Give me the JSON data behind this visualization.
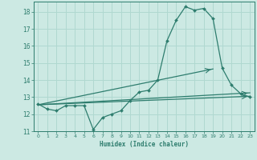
{
  "background_color": "#cce9e3",
  "grid_color": "#b0d8d0",
  "line_color": "#2e7d6e",
  "xlabel": "Humidex (Indice chaleur)",
  "xlim": [
    -0.5,
    23.5
  ],
  "ylim": [
    11,
    18.6
  ],
  "yticks": [
    11,
    12,
    13,
    14,
    15,
    16,
    17,
    18
  ],
  "xticks": [
    0,
    1,
    2,
    3,
    4,
    5,
    6,
    7,
    8,
    9,
    10,
    11,
    12,
    13,
    14,
    15,
    16,
    17,
    18,
    19,
    20,
    21,
    22,
    23
  ],
  "main_line_x": [
    0,
    1,
    2,
    3,
    4,
    5,
    6,
    7,
    8,
    9,
    10,
    11,
    12,
    13,
    14,
    15,
    16,
    17,
    18,
    19,
    20,
    21,
    22,
    23
  ],
  "main_line_y": [
    12.6,
    12.3,
    12.2,
    12.5,
    12.5,
    12.5,
    11.1,
    11.8,
    12.0,
    12.2,
    12.8,
    13.3,
    13.4,
    14.0,
    16.3,
    17.5,
    18.3,
    18.1,
    18.2,
    17.6,
    14.7,
    13.7,
    13.2,
    13.0
  ],
  "trend1_x": [
    0,
    23
  ],
  "trend1_y": [
    12.55,
    13.05
  ],
  "trend2_x": [
    0,
    23
  ],
  "trend2_y": [
    12.55,
    13.25
  ],
  "trend3_x": [
    0,
    19
  ],
  "trend3_y": [
    12.55,
    14.65
  ],
  "trend3_end_marker_x": 19,
  "trend3_end_marker_y": 14.65
}
